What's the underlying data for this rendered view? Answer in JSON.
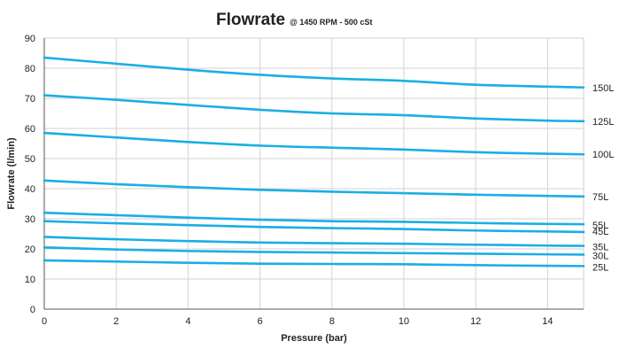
{
  "chart_data": {
    "type": "line",
    "title": "Flowrate",
    "subtitle": "@ 1450 RPM - 500 cSt",
    "xlabel": "Pressure (bar)",
    "ylabel": "Flowrate (l/min)",
    "xlim": [
      0,
      15
    ],
    "ylim": [
      0,
      90
    ],
    "xticks": [
      0,
      2,
      4,
      6,
      8,
      10,
      12,
      14
    ],
    "yticks": [
      0,
      10,
      20,
      30,
      40,
      50,
      60,
      70,
      80,
      90
    ],
    "grid": true,
    "legend": "labels at right end of each line",
    "line_color": "#1aaee6",
    "x": [
      0,
      2,
      4,
      6,
      8,
      10,
      12,
      14,
      15
    ],
    "series": [
      {
        "name": "150L",
        "values": [
          83.5,
          81.5,
          79.5,
          77.8,
          76.6,
          75.8,
          74.5,
          73.9,
          73.6
        ]
      },
      {
        "name": "125L",
        "values": [
          71.0,
          69.5,
          67.8,
          66.2,
          65.0,
          64.4,
          63.3,
          62.6,
          62.4
        ]
      },
      {
        "name": "100L",
        "values": [
          58.5,
          57.0,
          55.5,
          54.3,
          53.6,
          53.0,
          52.1,
          51.6,
          51.4
        ]
      },
      {
        "name": "75L",
        "values": [
          42.7,
          41.5,
          40.5,
          39.6,
          39.0,
          38.5,
          38.0,
          37.6,
          37.4
        ]
      },
      {
        "name": "55L",
        "values": [
          32.0,
          31.2,
          30.4,
          29.7,
          29.2,
          29.0,
          28.6,
          28.3,
          28.2
        ]
      },
      {
        "name": "45L",
        "values": [
          29.2,
          28.5,
          27.9,
          27.3,
          26.9,
          26.6,
          26.1,
          25.8,
          25.6
        ]
      },
      {
        "name": "35L",
        "values": [
          24.0,
          23.2,
          22.6,
          22.1,
          21.9,
          21.7,
          21.4,
          21.1,
          21.0
        ]
      },
      {
        "name": "30L",
        "values": [
          20.5,
          19.8,
          19.3,
          19.0,
          18.8,
          18.6,
          18.4,
          18.2,
          18.1
        ]
      },
      {
        "name": "25L",
        "values": [
          16.2,
          15.8,
          15.4,
          15.1,
          15.0,
          14.9,
          14.6,
          14.4,
          14.3
        ]
      }
    ],
    "label_offsets_y": [
      0,
      0,
      0,
      0,
      0,
      0,
      0,
      0,
      0
    ]
  }
}
